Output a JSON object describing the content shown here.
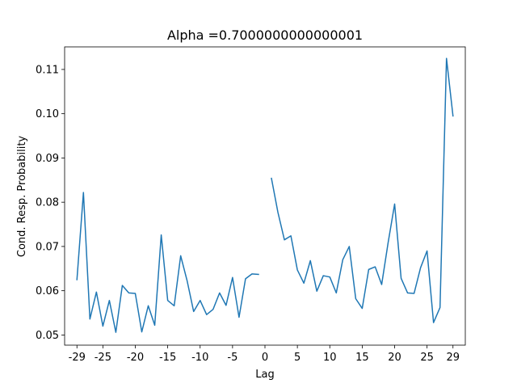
{
  "chart_data": {
    "type": "line",
    "title": "Alpha =0.7000000000000001",
    "xlabel": "Lag",
    "ylabel": "Cond. Resp. Probability",
    "xlim": [
      -30.9,
      30.9
    ],
    "ylim": [
      0.0477,
      0.1151
    ],
    "xticks": [
      -29,
      -25,
      -20,
      -15,
      -10,
      -5,
      0,
      5,
      10,
      15,
      20,
      25,
      29
    ],
    "yticks": [
      0.05,
      0.06,
      0.07,
      0.08,
      0.09,
      0.1,
      0.11
    ],
    "ytick_labels": [
      "0.05",
      "0.06",
      "0.07",
      "0.08",
      "0.09",
      "0.10",
      "0.11"
    ],
    "grid": false,
    "line_color": "#1f77b4",
    "series": [
      {
        "x": [
          -29,
          -28,
          -27,
          -26,
          -25,
          -24,
          -23,
          -22,
          -21,
          -20,
          -19,
          -18,
          -17,
          -16,
          -15,
          -14,
          -13,
          -12,
          -11,
          -10,
          -9,
          -8,
          -7,
          -6,
          -5,
          -4,
          -3,
          -2,
          -1,
          0,
          1,
          2,
          3,
          4,
          5,
          6,
          7,
          8,
          9,
          10,
          11,
          12,
          13,
          14,
          15,
          16,
          17,
          18,
          19,
          20,
          21,
          22,
          23,
          24,
          25,
          26,
          27,
          28,
          29
        ],
        "y": [
          0.0625,
          0.0822,
          0.0536,
          0.0597,
          0.052,
          0.0578,
          0.0506,
          0.0612,
          0.0595,
          0.0594,
          0.0507,
          0.0566,
          0.0522,
          0.0726,
          0.0578,
          0.0566,
          0.0679,
          0.0622,
          0.0553,
          0.0578,
          0.0546,
          0.0558,
          0.0595,
          0.0567,
          0.063,
          0.054,
          0.0627,
          0.0638,
          0.0637,
          null,
          0.0854,
          0.0777,
          0.0715,
          0.0724,
          0.0647,
          0.0617,
          0.0668,
          0.0599,
          0.0634,
          0.0631,
          0.0595,
          0.067,
          0.07,
          0.0582,
          0.056,
          0.0648,
          0.0654,
          0.0614,
          0.0709,
          0.0796,
          0.0628,
          0.0595,
          0.0594,
          0.0652,
          0.069,
          0.0528,
          0.0562,
          0.1125,
          0.0995
        ]
      }
    ]
  }
}
